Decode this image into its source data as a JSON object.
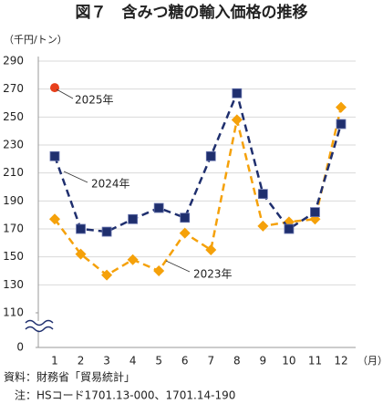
{
  "chart_data": {
    "type": "line",
    "title": "図７　含みつ糖の輸入価格の推移",
    "y_axis_label": "（千円/トン）",
    "x_axis_label": "（月）",
    "categories": [
      "1",
      "2",
      "3",
      "4",
      "5",
      "6",
      "7",
      "8",
      "9",
      "10",
      "11",
      "12"
    ],
    "series": [
      {
        "name": "2025年",
        "color": "#e8401c",
        "marker": "circle",
        "values": [
          271,
          null,
          null,
          null,
          null,
          null,
          null,
          null,
          null,
          null,
          null,
          null
        ]
      },
      {
        "name": "2024年",
        "color": "#1f2f6e",
        "marker": "square",
        "values": [
          222,
          170,
          168,
          177,
          185,
          178,
          222,
          267,
          195,
          170,
          182,
          245
        ]
      },
      {
        "name": "2023年",
        "color": "#f5a10a",
        "marker": "diamond",
        "values": [
          177,
          152,
          137,
          148,
          140,
          167,
          155,
          248,
          172,
          175,
          177,
          257
        ]
      }
    ],
    "ylim": [
      110,
      290
    ],
    "yticks": [
      0,
      110,
      130,
      150,
      170,
      190,
      210,
      230,
      250,
      270,
      290
    ],
    "axis_break": true,
    "grid": true,
    "notes": [
      "資料：財務省「貿易統計」",
      "　注：HSコード1701.13-000、1701.14-190"
    ]
  }
}
